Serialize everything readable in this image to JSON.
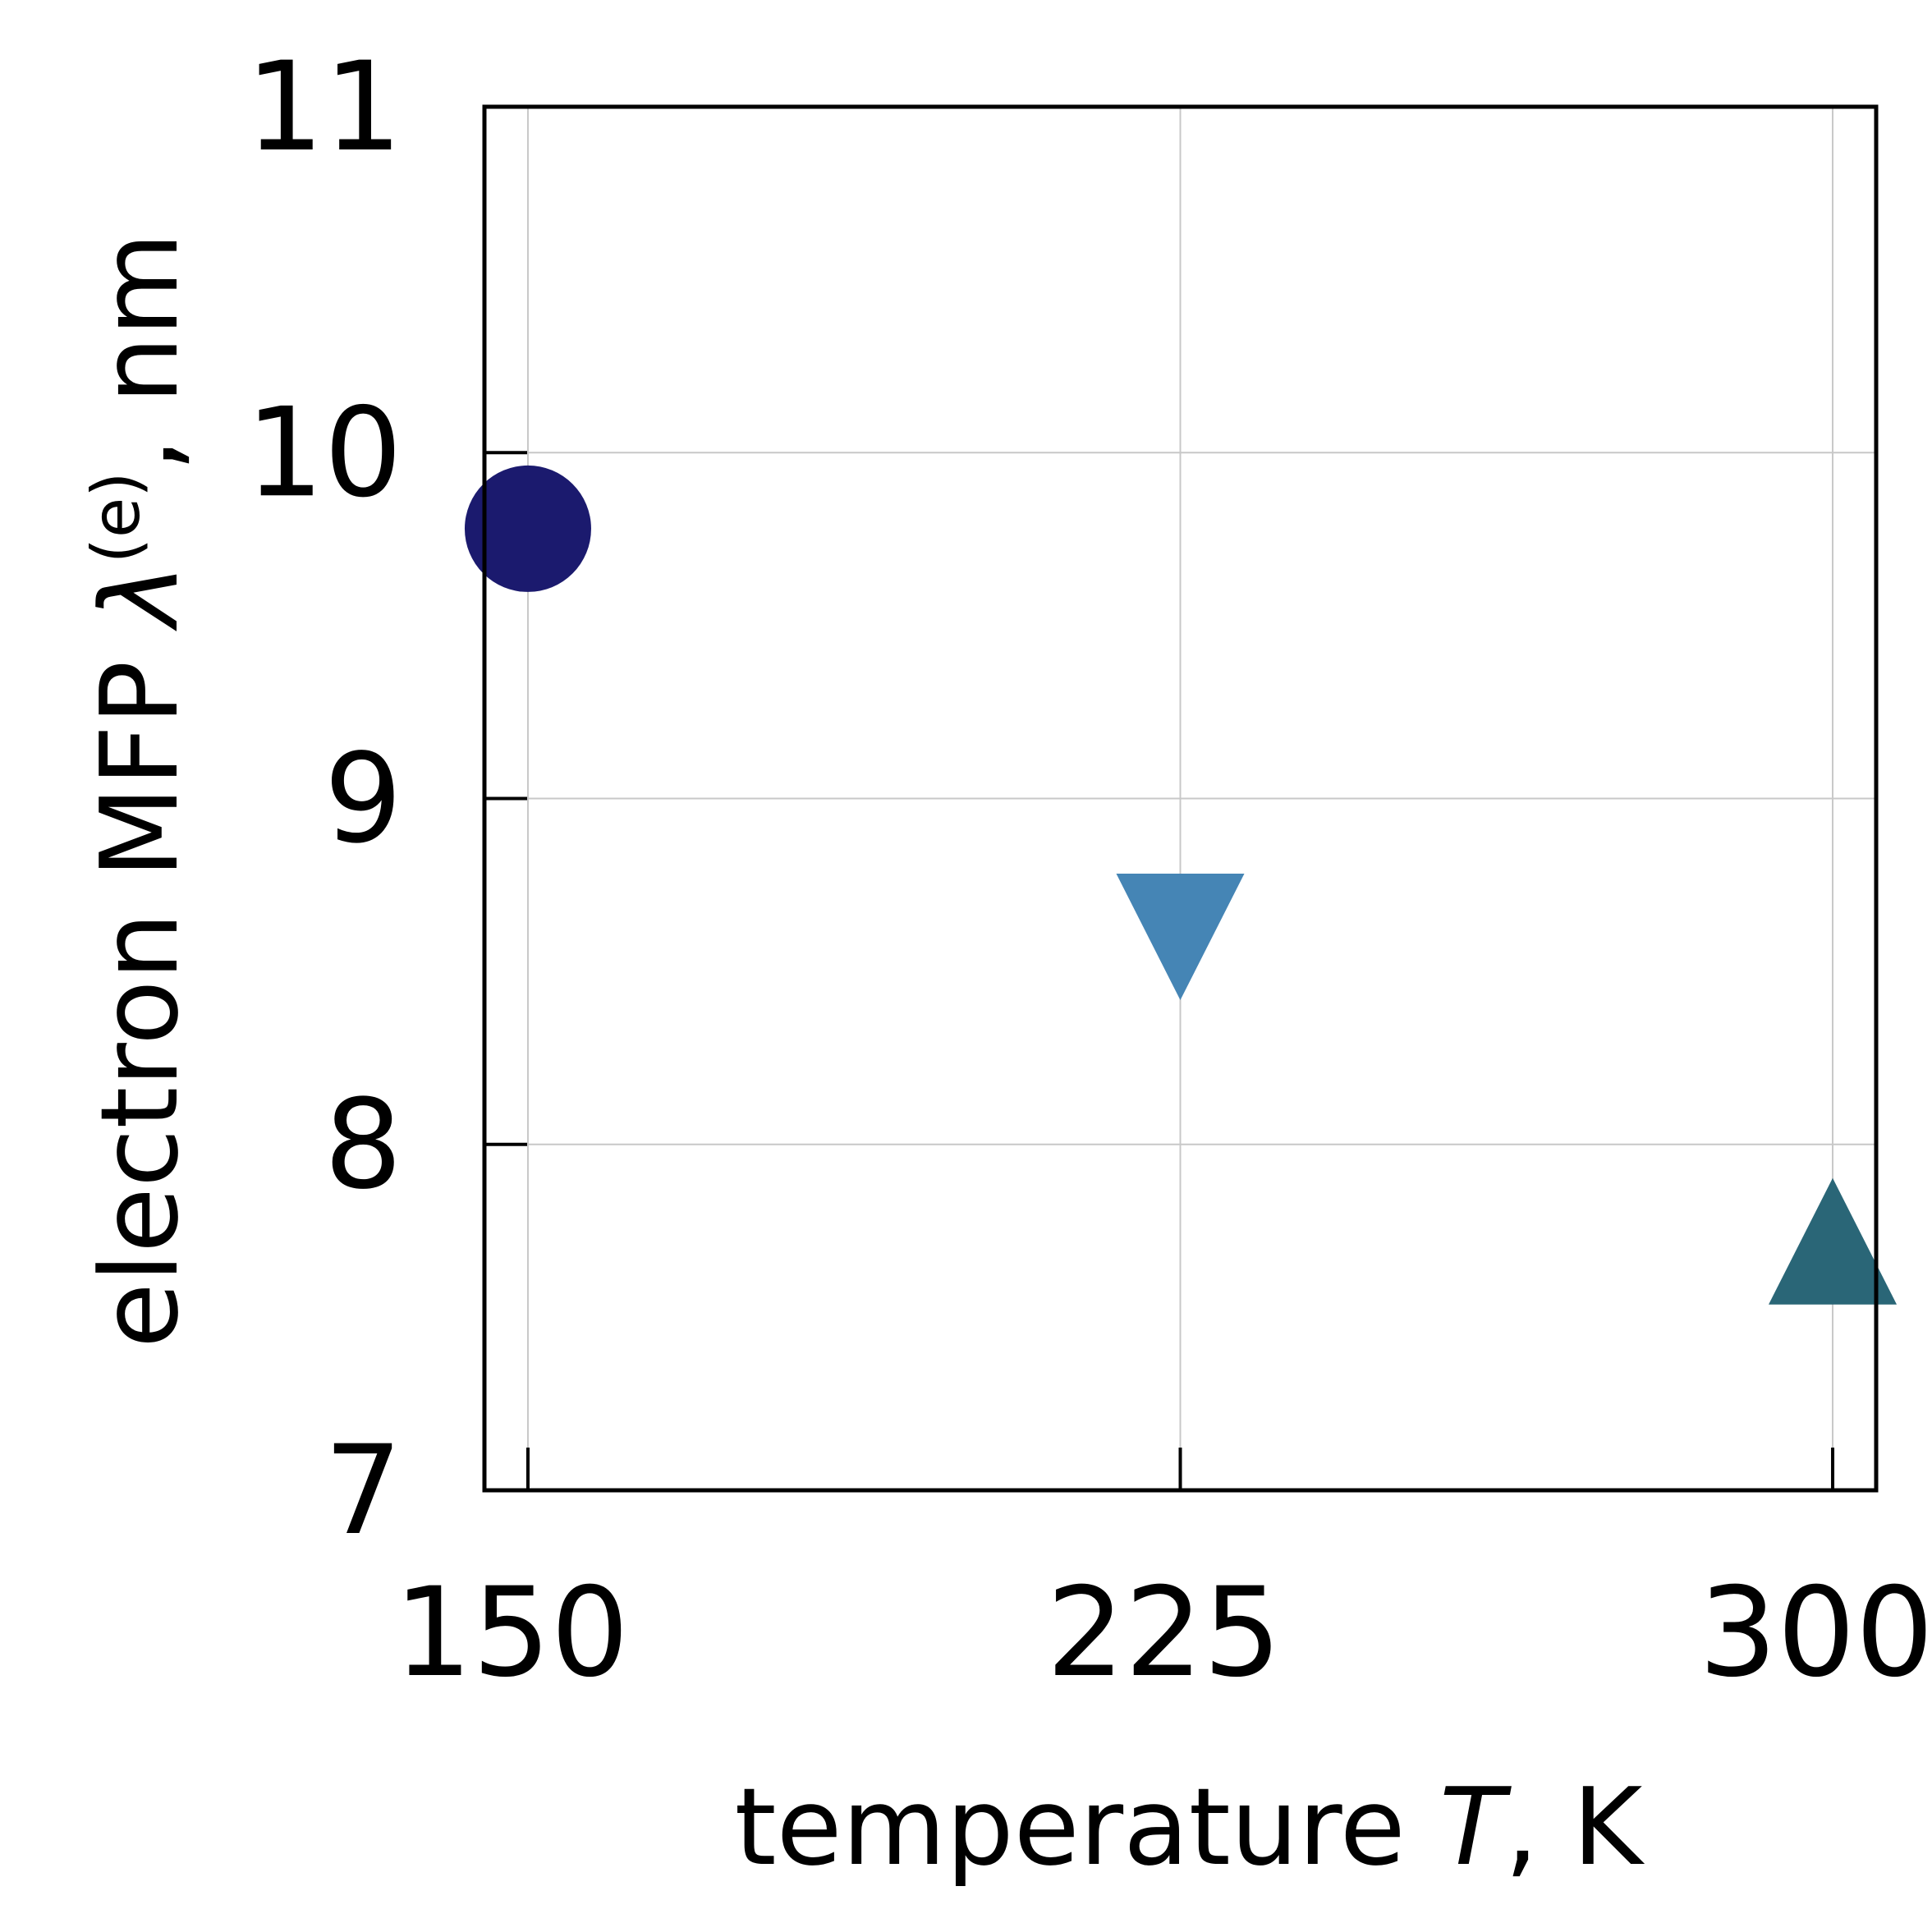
{
  "chart_data": {
    "type": "scatter",
    "title": "",
    "xlabel_parts": {
      "prefix": "temperature ",
      "symbol": "T",
      "suffix": ", K"
    },
    "ylabel_parts": {
      "prefix": "electron MFP ",
      "symbol": "λ",
      "superscript": "(e)",
      "suffix": ", nm"
    },
    "xlim": [
      145,
      305
    ],
    "ylim": [
      7,
      11
    ],
    "xticks": [
      "150",
      "225",
      "300"
    ],
    "yticks": [
      "7",
      "8",
      "9",
      "10",
      "11"
    ],
    "grid": true,
    "series": [
      {
        "x": 150,
        "y": 9.78,
        "marker": "circle",
        "color": "#1b1a6e"
      },
      {
        "x": 225,
        "y": 8.6,
        "marker": "triangle-down",
        "color": "#4585b5"
      },
      {
        "x": 300,
        "y": 7.72,
        "marker": "triangle-up",
        "color": "#2a6677"
      }
    ]
  }
}
